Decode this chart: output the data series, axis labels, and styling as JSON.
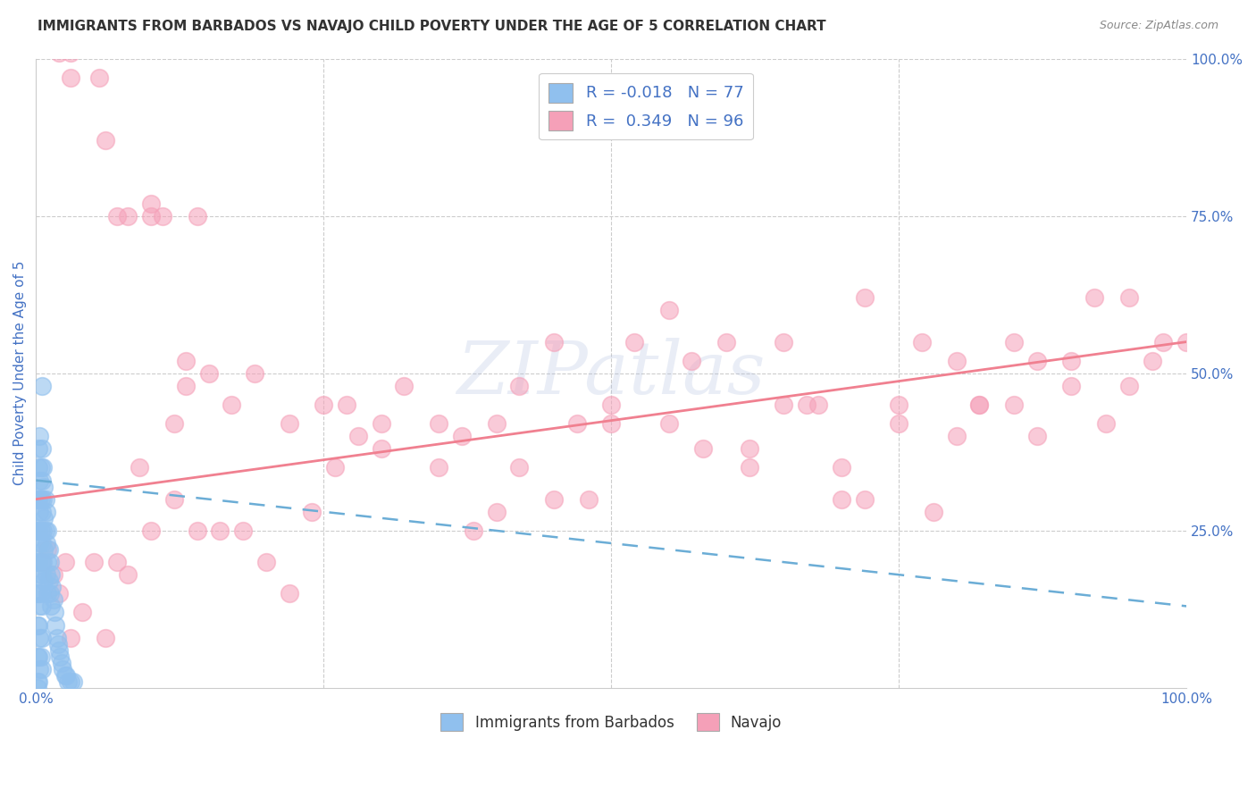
{
  "title": "IMMIGRANTS FROM BARBADOS VS NAVAJO CHILD POVERTY UNDER THE AGE OF 5 CORRELATION CHART",
  "source": "Source: ZipAtlas.com",
  "ylabel": "Child Poverty Under the Age of 5",
  "xlim": [
    0.0,
    1.0
  ],
  "ylim": [
    0.0,
    1.0
  ],
  "legend_labels": [
    "Immigrants from Barbados",
    "Navajo"
  ],
  "R_barbados": -0.018,
  "N_barbados": 77,
  "R_navajo": 0.349,
  "N_navajo": 96,
  "color_barbados": "#90C0EE",
  "color_navajo": "#F5A0B8",
  "trendline_barbados_color": "#6BADD6",
  "trendline_navajo_color": "#F08090",
  "watermark_text": "ZIPatlas",
  "background_color": "#FFFFFF",
  "grid_color": "#CCCCCC",
  "title_color": "#333333",
  "axis_label_color": "#4472C4",
  "tick_color": "#4472C4",
  "legend_box_color": "#CCCCCC",
  "navajo_x": [
    0.02,
    0.03,
    0.03,
    0.055,
    0.06,
    0.07,
    0.08,
    0.1,
    0.1,
    0.11,
    0.12,
    0.13,
    0.13,
    0.14,
    0.15,
    0.17,
    0.19,
    0.22,
    0.25,
    0.27,
    0.3,
    0.32,
    0.35,
    0.37,
    0.4,
    0.42,
    0.45,
    0.47,
    0.5,
    0.52,
    0.55,
    0.57,
    0.6,
    0.62,
    0.65,
    0.67,
    0.7,
    0.72,
    0.75,
    0.77,
    0.8,
    0.82,
    0.85,
    0.87,
    0.9,
    0.92,
    0.95,
    0.97,
    1.0,
    0.98,
    0.005,
    0.01,
    0.015,
    0.02,
    0.025,
    0.03,
    0.04,
    0.05,
    0.06,
    0.07,
    0.08,
    0.09,
    0.1,
    0.12,
    0.14,
    0.16,
    0.18,
    0.2,
    0.22,
    0.24,
    0.26,
    0.28,
    0.3,
    0.35,
    0.38,
    0.4,
    0.42,
    0.45,
    0.48,
    0.5,
    0.55,
    0.58,
    0.62,
    0.65,
    0.68,
    0.7,
    0.72,
    0.75,
    0.78,
    0.8,
    0.82,
    0.85,
    0.87,
    0.9,
    0.93,
    0.95
  ],
  "navajo_y": [
    1.01,
    1.01,
    0.97,
    0.97,
    0.87,
    0.75,
    0.75,
    0.75,
    0.77,
    0.75,
    0.42,
    0.52,
    0.48,
    0.75,
    0.5,
    0.45,
    0.5,
    0.42,
    0.45,
    0.45,
    0.42,
    0.48,
    0.42,
    0.4,
    0.42,
    0.48,
    0.55,
    0.42,
    0.45,
    0.55,
    0.6,
    0.52,
    0.55,
    0.35,
    0.55,
    0.45,
    0.35,
    0.62,
    0.45,
    0.55,
    0.52,
    0.45,
    0.55,
    0.52,
    0.52,
    0.62,
    0.62,
    0.52,
    0.55,
    0.55,
    0.2,
    0.22,
    0.18,
    0.15,
    0.2,
    0.08,
    0.12,
    0.2,
    0.08,
    0.2,
    0.18,
    0.35,
    0.25,
    0.3,
    0.25,
    0.25,
    0.25,
    0.2,
    0.15,
    0.28,
    0.35,
    0.4,
    0.38,
    0.35,
    0.25,
    0.28,
    0.35,
    0.3,
    0.3,
    0.42,
    0.42,
    0.38,
    0.38,
    0.45,
    0.45,
    0.3,
    0.3,
    0.42,
    0.28,
    0.4,
    0.45,
    0.45,
    0.4,
    0.48,
    0.42,
    0.48
  ],
  "barbados_x": [
    0.001,
    0.001,
    0.001,
    0.001,
    0.001,
    0.001,
    0.001,
    0.002,
    0.002,
    0.002,
    0.002,
    0.002,
    0.002,
    0.002,
    0.002,
    0.002,
    0.003,
    0.003,
    0.003,
    0.003,
    0.003,
    0.003,
    0.003,
    0.003,
    0.004,
    0.004,
    0.004,
    0.004,
    0.004,
    0.004,
    0.005,
    0.005,
    0.005,
    0.005,
    0.005,
    0.005,
    0.005,
    0.005,
    0.005,
    0.006,
    0.006,
    0.006,
    0.006,
    0.007,
    0.007,
    0.007,
    0.007,
    0.008,
    0.008,
    0.009,
    0.009,
    0.009,
    0.01,
    0.01,
    0.01,
    0.011,
    0.011,
    0.012,
    0.012,
    0.013,
    0.013,
    0.014,
    0.015,
    0.016,
    0.017,
    0.018,
    0.019,
    0.02,
    0.021,
    0.022,
    0.023,
    0.025,
    0.026,
    0.028,
    0.03,
    0.032,
    0.001
  ],
  "barbados_y": [
    0.3,
    0.25,
    0.2,
    0.15,
    0.1,
    0.05,
    0.01,
    0.35,
    0.3,
    0.25,
    0.2,
    0.15,
    0.1,
    0.05,
    0.01,
    0.38,
    0.33,
    0.28,
    0.23,
    0.18,
    0.13,
    0.08,
    0.03,
    0.4,
    0.35,
    0.3,
    0.25,
    0.2,
    0.15,
    0.05,
    0.38,
    0.33,
    0.28,
    0.23,
    0.18,
    0.13,
    0.08,
    0.03,
    0.48,
    0.35,
    0.3,
    0.25,
    0.2,
    0.32,
    0.27,
    0.22,
    0.17,
    0.3,
    0.25,
    0.28,
    0.23,
    0.18,
    0.25,
    0.2,
    0.15,
    0.22,
    0.17,
    0.2,
    0.15,
    0.18,
    0.13,
    0.16,
    0.14,
    0.12,
    0.1,
    0.08,
    0.07,
    0.06,
    0.05,
    0.04,
    0.03,
    0.02,
    0.02,
    0.01,
    0.01,
    0.01,
    0.0
  ]
}
